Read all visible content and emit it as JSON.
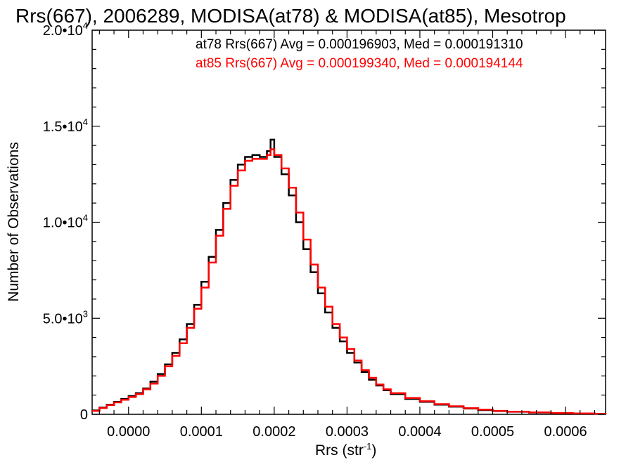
{
  "chart_data": {
    "type": "line",
    "title": "Rrs(667), 2006289, MODISA(at78) & MODISA(at85), Mesotrop",
    "xlabel": "Rrs (str",
    "xlabel_exp": "-1",
    "xlabel_close": ")",
    "ylabel": "Number of Observations",
    "xlim": [
      -5e-05,
      0.000655
    ],
    "ylim": [
      0,
      20000
    ],
    "x_ticks": [
      {
        "value": 0.0,
        "label": "0.0000"
      },
      {
        "value": 0.0001,
        "label": "0.0001"
      },
      {
        "value": 0.0002,
        "label": "0.0002"
      },
      {
        "value": 0.0003,
        "label": "0.0003"
      },
      {
        "value": 0.0004,
        "label": "0.0004"
      },
      {
        "value": 0.0005,
        "label": "0.0005"
      },
      {
        "value": 0.0006,
        "label": "0.0006"
      }
    ],
    "y_ticks": [
      {
        "value": 0,
        "mant": "0",
        "exp": ""
      },
      {
        "value": 5000,
        "mant": "5.0•10",
        "exp": "3"
      },
      {
        "value": 10000,
        "mant": "1.0•10",
        "exp": "4"
      },
      {
        "value": 15000,
        "mant": "1.5•10",
        "exp": "4"
      },
      {
        "value": 20000,
        "mant": "2.0•10",
        "exp": "4"
      }
    ],
    "grid": false,
    "stats": [
      {
        "text": "at78 Rrs(667) Avg = 0.000196903, Med = 0.000191310",
        "color": "#000000"
      },
      {
        "text": "at85 Rrs(667) Avg = 0.000199340, Med = 0.000194144",
        "color": "#ff0000"
      }
    ],
    "series": [
      {
        "name": "at78",
        "color": "#000000",
        "style": "histogram-step",
        "x": [
          -5e-05,
          -4e-05,
          -3e-05,
          -2e-05,
          -1e-05,
          0.0,
          1e-05,
          2e-05,
          3e-05,
          4e-05,
          5e-05,
          6e-05,
          7e-05,
          8e-05,
          9e-05,
          0.0001,
          0.00011,
          0.00012,
          0.00013,
          0.00014,
          0.00015,
          0.00016,
          0.00017,
          0.00018,
          0.00019,
          0.000195,
          0.0002,
          0.00021,
          0.00022,
          0.00023,
          0.00024,
          0.00025,
          0.00026,
          0.00027,
          0.00028,
          0.00029,
          0.0003,
          0.00031,
          0.00032,
          0.00033,
          0.00034,
          0.00035,
          0.00036,
          0.00038,
          0.0004,
          0.00042,
          0.00044,
          0.00046,
          0.00048,
          0.0005,
          0.00052,
          0.00055,
          0.00058,
          0.00061,
          0.00064,
          0.000655
        ],
        "values": [
          200,
          350,
          500,
          650,
          800,
          950,
          1100,
          1350,
          1700,
          2100,
          2600,
          3200,
          3900,
          4700,
          5700,
          6900,
          8200,
          9600,
          11000,
          12200,
          13000,
          13400,
          13500,
          13400,
          13700,
          14300,
          13400,
          12500,
          11400,
          10000,
          8600,
          7400,
          6300,
          5300,
          4500,
          3800,
          3200,
          2700,
          2200,
          1800,
          1500,
          1250,
          1050,
          800,
          650,
          500,
          400,
          300,
          220,
          170,
          130,
          90,
          60,
          40,
          25,
          15
        ]
      },
      {
        "name": "at85",
        "color": "#ff0000",
        "style": "histogram-step",
        "x": [
          -5e-05,
          -4e-05,
          -3e-05,
          -2e-05,
          -1e-05,
          0.0,
          1e-05,
          2e-05,
          3e-05,
          4e-05,
          5e-05,
          6e-05,
          7e-05,
          8e-05,
          9e-05,
          0.0001,
          0.00011,
          0.00012,
          0.00013,
          0.00014,
          0.00015,
          0.00016,
          0.00017,
          0.00018,
          0.00019,
          0.000195,
          0.0002,
          0.00021,
          0.00022,
          0.00023,
          0.00024,
          0.00025,
          0.00026,
          0.00027,
          0.00028,
          0.00029,
          0.0003,
          0.00031,
          0.00032,
          0.00033,
          0.00034,
          0.00035,
          0.00036,
          0.00038,
          0.0004,
          0.00042,
          0.00044,
          0.00046,
          0.00048,
          0.0005,
          0.00052,
          0.00055,
          0.00058,
          0.00061,
          0.00064,
          0.000655
        ],
        "values": [
          180,
          330,
          480,
          620,
          760,
          900,
          1050,
          1300,
          1600,
          2000,
          2500,
          3050,
          3700,
          4500,
          5500,
          6600,
          7900,
          9300,
          10700,
          11900,
          12700,
          13200,
          13300,
          13300,
          13500,
          13800,
          13500,
          12800,
          11800,
          10500,
          9100,
          7800,
          6600,
          5600,
          4700,
          4000,
          3400,
          2800,
          2300,
          1900,
          1550,
          1300,
          1100,
          850,
          680,
          530,
          420,
          320,
          240,
          180,
          140,
          100,
          65,
          45,
          28,
          18
        ]
      }
    ]
  }
}
